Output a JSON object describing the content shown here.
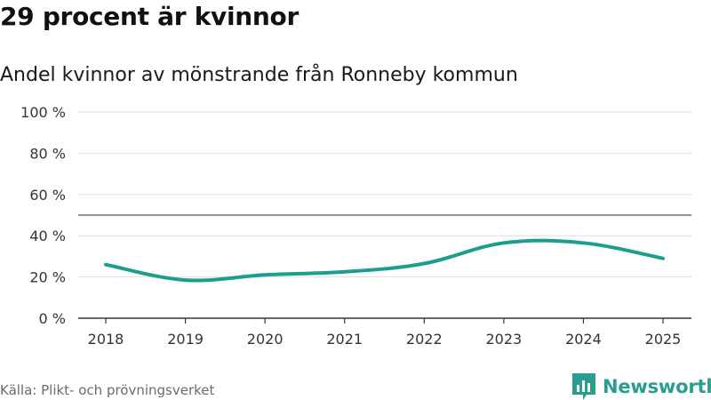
{
  "title": "29 procent är kvinnor",
  "source": "Källa: Plikt- och prövningsverket",
  "brand": {
    "name": "Newsworthy",
    "icon": "bar-chart-icon",
    "color": "#2a9d8f"
  },
  "chart_data": {
    "type": "line",
    "title": "29 procent är kvinnor",
    "subtitle": "Andel kvinnor av mönstrande från Ronneby kommun",
    "xlabel": "",
    "ylabel": "",
    "categories": [
      "2018",
      "2019",
      "2020",
      "2021",
      "2022",
      "2023",
      "2024",
      "2025"
    ],
    "series": [
      {
        "name": "Andel kvinnor",
        "color": "#1a9e8f",
        "values": [
          26,
          18.5,
          21,
          22.5,
          26.5,
          36.5,
          36.5,
          29
        ]
      }
    ],
    "ylim": [
      0,
      100
    ],
    "yticks": [
      0,
      20,
      40,
      60,
      80,
      100
    ],
    "ytick_labels": [
      "0 %",
      "20 %",
      "40 %",
      "60 %",
      "80 %",
      "100 %"
    ],
    "reference_line": 50,
    "grid": true
  }
}
